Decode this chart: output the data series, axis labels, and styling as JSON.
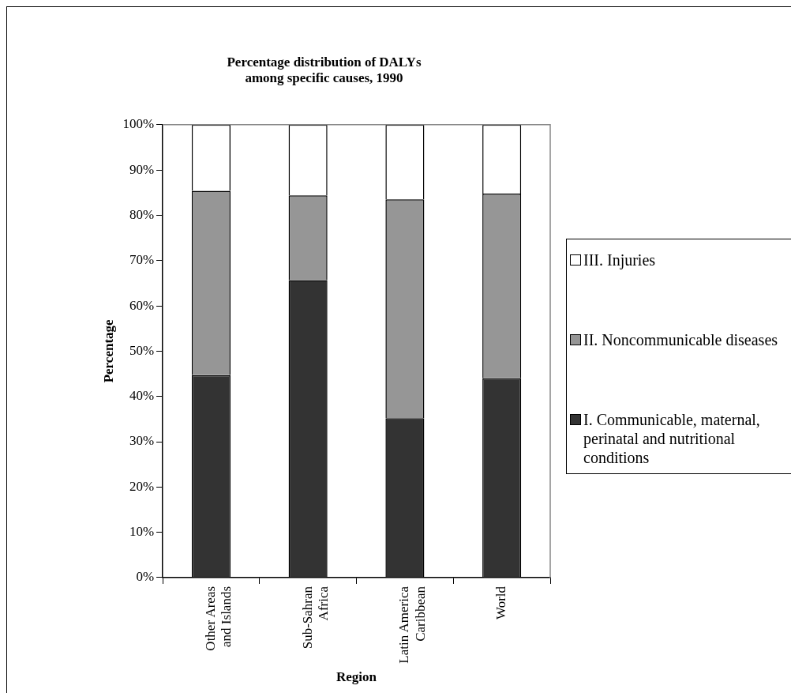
{
  "chart_data": {
    "type": "bar",
    "stacked": true,
    "title": "Percentage distribution of DALYs\namong specific causes, 1990",
    "xlabel": "Region",
    "ylabel": "Percentage",
    "categories": [
      "Other Areas\nand Islands",
      "Sub-Sahran\nAfrica",
      "Latin America\nCaribbean",
      "World"
    ],
    "series": [
      {
        "name": "I. Communicable, maternal, perinatal and nutritional conditions",
        "color": "#333333",
        "values": [
          44.7,
          65.7,
          35.2,
          44.0
        ]
      },
      {
        "name": "II. Noncommunicable diseases",
        "color": "#969696",
        "values": [
          40.7,
          18.7,
          48.3,
          40.8
        ]
      },
      {
        "name": "III. Injuries",
        "color": "#ffffff",
        "values": [
          14.6,
          15.6,
          16.5,
          15.2
        ]
      }
    ],
    "ylim": [
      0,
      100
    ],
    "yticks": [
      {
        "value": 0,
        "label": "0%"
      },
      {
        "value": 10,
        "label": "10%"
      },
      {
        "value": 20,
        "label": "20%"
      },
      {
        "value": 30,
        "label": "30%"
      },
      {
        "value": 40,
        "label": "40%"
      },
      {
        "value": 50,
        "label": "50%"
      },
      {
        "value": 60,
        "label": "60%"
      },
      {
        "value": 70,
        "label": "70%"
      },
      {
        "value": 80,
        "label": "80%"
      },
      {
        "value": 90,
        "label": "90%"
      },
      {
        "value": 100,
        "label": "100%"
      }
    ],
    "grid": false,
    "legend": "right"
  }
}
